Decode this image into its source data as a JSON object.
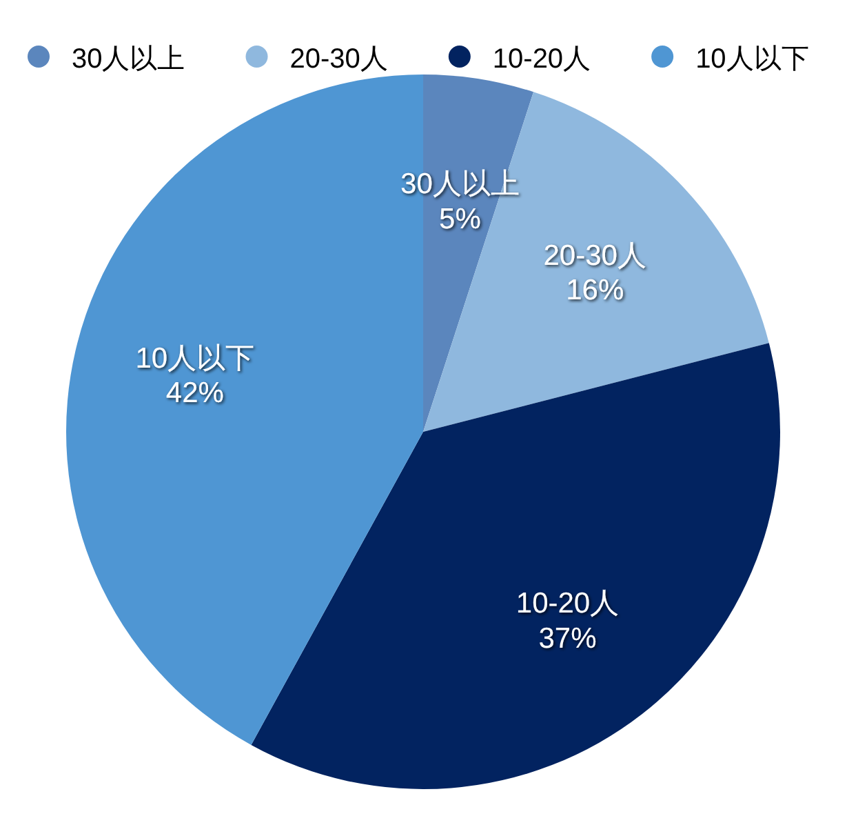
{
  "chart_data": {
    "type": "pie",
    "categories": [
      "30人以上",
      "20-30人",
      "10-20人",
      "10人以下"
    ],
    "values": [
      5,
      16,
      37,
      42
    ],
    "value_labels": [
      "5%",
      "16%",
      "37%",
      "42%"
    ],
    "colors": [
      "#5b86bd",
      "#8fb8de",
      "#022360",
      "#4f96d3"
    ],
    "legend": "top"
  }
}
